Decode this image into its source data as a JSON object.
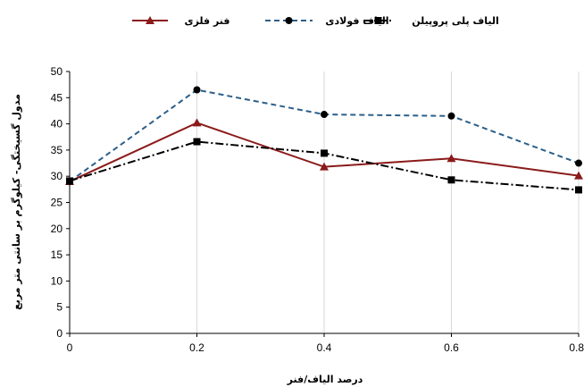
{
  "chart_data": {
    "type": "line",
    "x": [
      0,
      0.2,
      0.4,
      0.6,
      0.8
    ],
    "x_tick_labels": [
      "0",
      "0.2",
      "0.4",
      "0.6",
      "0.8"
    ],
    "ylim": [
      0,
      50
    ],
    "y_ticks": [
      0,
      5,
      10,
      15,
      20,
      25,
      30,
      35,
      40,
      45,
      50
    ],
    "y_tick_labels": [
      "0",
      "5",
      "10",
      "15",
      "20",
      "25",
      "30",
      "35",
      "40",
      "45",
      "50"
    ],
    "xlabel": "درصد الیاف/فنر",
    "ylabel": "مدول گسیختگی- کیلوگرم بر سانتی متر مربع",
    "grid": "vertical",
    "legend_position": "top",
    "series": [
      {
        "name": "فنر فلزی",
        "values": [
          29.0,
          40.2,
          31.8,
          33.4,
          30.1
        ],
        "color": "#8B1A1A",
        "style": "solid",
        "marker": "triangle"
      },
      {
        "name": "الیاف فولادی",
        "values": [
          29.0,
          46.5,
          41.8,
          41.5,
          32.5
        ],
        "color": "#2B5F8A",
        "style": "dashed",
        "marker": "circle"
      },
      {
        "name": "الیاف پلی پروپیلن",
        "values": [
          29.1,
          36.6,
          34.4,
          29.3,
          27.4
        ],
        "color": "#000000",
        "style": "dashdot",
        "marker": "square"
      }
    ]
  }
}
